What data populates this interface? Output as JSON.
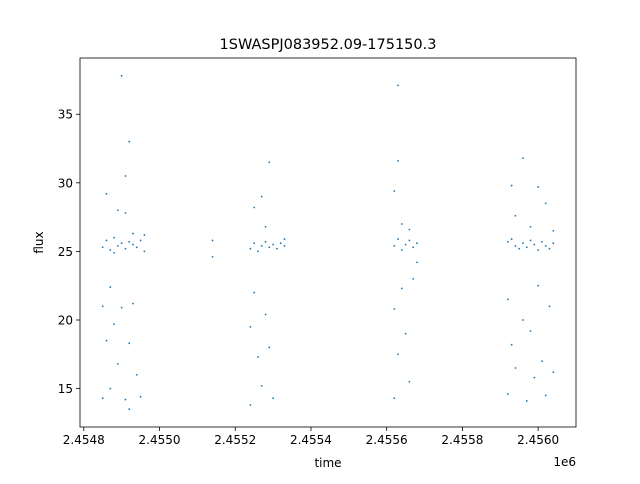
{
  "chart_data": {
    "type": "scatter",
    "title": "1SWASPJ083952.09-175150.3",
    "xlabel": "time",
    "ylabel": "flux",
    "x_offset_label": "1e6",
    "xlim": [
      2.45479,
      2.4561
    ],
    "ylim": [
      12.2,
      39.1
    ],
    "x_ticks": [
      2.4548,
      2.455,
      2.4552,
      2.4554,
      2.4556,
      2.4558,
      2.456
    ],
    "x_tick_labels": [
      "2.4548",
      "2.4550",
      "2.4552",
      "2.4554",
      "2.4556",
      "2.4558",
      "2.4560"
    ],
    "y_ticks": [
      15,
      20,
      25,
      30,
      35
    ],
    "y_tick_labels": [
      "15",
      "20",
      "25",
      "30",
      "35"
    ],
    "grid": false,
    "legend": "none",
    "marker_color": "#1f77b4",
    "series": [
      {
        "points": [
          [
            2.45485,
            25.3
          ],
          [
            2.45485,
            21.0
          ],
          [
            2.45485,
            14.3
          ],
          [
            2.45486,
            29.2
          ],
          [
            2.45486,
            25.8
          ],
          [
            2.45486,
            18.5
          ],
          [
            2.45487,
            25.1
          ],
          [
            2.45487,
            22.4
          ],
          [
            2.45487,
            15.0
          ],
          [
            2.45488,
            24.9
          ],
          [
            2.45488,
            26.0
          ],
          [
            2.45488,
            19.7
          ],
          [
            2.45489,
            25.4
          ],
          [
            2.45489,
            28.0
          ],
          [
            2.45489,
            16.8
          ],
          [
            2.4549,
            25.6
          ],
          [
            2.4549,
            37.8
          ],
          [
            2.4549,
            20.9
          ],
          [
            2.45491,
            25.2
          ],
          [
            2.45491,
            30.5
          ],
          [
            2.45491,
            27.8
          ],
          [
            2.45491,
            14.2
          ],
          [
            2.45492,
            25.7
          ],
          [
            2.45492,
            33.0
          ],
          [
            2.45492,
            18.3
          ],
          [
            2.45492,
            13.5
          ],
          [
            2.45493,
            25.5
          ],
          [
            2.45493,
            26.3
          ],
          [
            2.45493,
            21.2
          ],
          [
            2.45494,
            25.3
          ],
          [
            2.45494,
            16.0
          ],
          [
            2.45495,
            25.8
          ],
          [
            2.45495,
            14.4
          ],
          [
            2.45496,
            26.2
          ],
          [
            2.45496,
            25.0
          ],
          [
            2.45514,
            25.8
          ],
          [
            2.45514,
            24.6
          ],
          [
            2.45524,
            25.2
          ],
          [
            2.45524,
            19.5
          ],
          [
            2.45524,
            13.8
          ],
          [
            2.45525,
            25.6
          ],
          [
            2.45525,
            28.2
          ],
          [
            2.45525,
            22.0
          ],
          [
            2.45526,
            25.0
          ],
          [
            2.45526,
            17.3
          ],
          [
            2.45527,
            25.4
          ],
          [
            2.45527,
            29.0
          ],
          [
            2.45527,
            15.2
          ],
          [
            2.45528,
            25.7
          ],
          [
            2.45528,
            26.8
          ],
          [
            2.45528,
            20.4
          ],
          [
            2.45529,
            25.3
          ],
          [
            2.45529,
            31.5
          ],
          [
            2.45529,
            18.0
          ],
          [
            2.4553,
            25.5
          ],
          [
            2.4553,
            14.3
          ],
          [
            2.45531,
            25.2
          ],
          [
            2.45532,
            25.6
          ],
          [
            2.45533,
            25.9
          ],
          [
            2.45533,
            25.4
          ],
          [
            2.45562,
            25.4
          ],
          [
            2.45562,
            29.4
          ],
          [
            2.45562,
            20.8
          ],
          [
            2.45562,
            14.3
          ],
          [
            2.45563,
            25.9
          ],
          [
            2.45563,
            37.1
          ],
          [
            2.45563,
            31.6
          ],
          [
            2.45563,
            17.5
          ],
          [
            2.45564,
            25.1
          ],
          [
            2.45564,
            27.0
          ],
          [
            2.45564,
            22.3
          ],
          [
            2.45565,
            25.5
          ],
          [
            2.45565,
            19.0
          ],
          [
            2.45566,
            25.8
          ],
          [
            2.45566,
            26.6
          ],
          [
            2.45566,
            15.5
          ],
          [
            2.45567,
            25.3
          ],
          [
            2.45567,
            23.0
          ],
          [
            2.45568,
            25.6
          ],
          [
            2.45568,
            24.2
          ],
          [
            2.45592,
            25.7
          ],
          [
            2.45592,
            21.5
          ],
          [
            2.45592,
            14.6
          ],
          [
            2.45593,
            25.9
          ],
          [
            2.45593,
            29.8
          ],
          [
            2.45593,
            18.2
          ],
          [
            2.45594,
            25.4
          ],
          [
            2.45594,
            27.6
          ],
          [
            2.45594,
            16.5
          ],
          [
            2.45595,
            25.2
          ],
          [
            2.45596,
            25.6
          ],
          [
            2.45596,
            31.8
          ],
          [
            2.45596,
            20.0
          ],
          [
            2.45597,
            25.3
          ],
          [
            2.45597,
            14.1
          ],
          [
            2.45598,
            25.8
          ],
          [
            2.45598,
            26.8
          ],
          [
            2.45598,
            19.2
          ],
          [
            2.45599,
            25.5
          ],
          [
            2.45599,
            15.8
          ],
          [
            2.456,
            25.1
          ],
          [
            2.456,
            29.7
          ],
          [
            2.456,
            22.5
          ],
          [
            2.45601,
            25.7
          ],
          [
            2.45601,
            17.0
          ],
          [
            2.45602,
            25.4
          ],
          [
            2.45602,
            28.5
          ],
          [
            2.45602,
            14.5
          ],
          [
            2.45603,
            25.2
          ],
          [
            2.45603,
            21.0
          ],
          [
            2.45604,
            25.6
          ],
          [
            2.45604,
            16.2
          ],
          [
            2.45604,
            26.5
          ]
        ]
      }
    ]
  }
}
